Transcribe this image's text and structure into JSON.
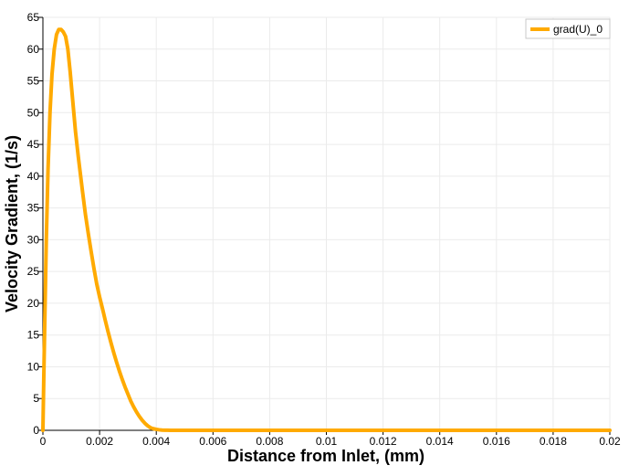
{
  "chart_data": {
    "type": "line",
    "title": "",
    "xlabel": "Distance from Inlet, (mm)",
    "ylabel": "Velocity Gradient, (1/s)",
    "xlim": [
      0,
      0.02
    ],
    "ylim": [
      0,
      65
    ],
    "x_ticks": [
      0,
      0.002,
      0.004,
      0.006,
      0.008,
      0.01,
      0.012,
      0.014,
      0.016,
      0.018,
      0.02
    ],
    "x_tick_labels": [
      "0",
      "0.002",
      "0.004",
      "0.006",
      "0.008",
      "0.01",
      "0.012",
      "0.014",
      "0.016",
      "0.018",
      "0.02"
    ],
    "y_ticks": [
      0,
      5,
      10,
      15,
      20,
      25,
      30,
      35,
      40,
      45,
      50,
      55,
      60,
      65
    ],
    "y_tick_labels": [
      "0",
      "5",
      "10",
      "15",
      "20",
      "25",
      "30",
      "35",
      "40",
      "45",
      "50",
      "55",
      "60",
      "65"
    ],
    "grid": true,
    "legend_position": "top-right",
    "series": [
      {
        "name": "grad(U)_0",
        "color": "#ffaa00",
        "x": [
          0,
          3e-05,
          7e-05,
          0.00012,
          0.00018,
          0.00025,
          0.00032,
          0.0004,
          0.00048,
          0.00056,
          0.00064,
          0.00072,
          0.0008,
          0.00088,
          0.00096,
          0.00105,
          0.00115,
          0.00125,
          0.0014,
          0.0015,
          0.0016,
          0.0017,
          0.0018,
          0.0019,
          0.002,
          0.0021,
          0.0022,
          0.0023,
          0.0024,
          0.0025,
          0.0026,
          0.0027,
          0.0028,
          0.0029,
          0.003,
          0.0031,
          0.0032,
          0.0033,
          0.0034,
          0.0035,
          0.0036,
          0.0037,
          0.0038,
          0.0039,
          0.004,
          0.0041,
          0.0042,
          0.0043,
          0.0044,
          0.0045,
          0.0046,
          0.0047,
          0.0048,
          0.005,
          0.006,
          0.008,
          0.01,
          0.012,
          0.014,
          0.016,
          0.018,
          0.02
        ],
        "values": [
          0,
          8,
          18,
          30,
          41,
          50,
          56,
          60,
          62.3,
          63.1,
          63.1,
          62.7,
          62,
          60,
          56.5,
          52,
          47,
          43,
          37.5,
          34,
          31,
          28.2,
          25.5,
          23,
          21,
          19.2,
          17.3,
          15.5,
          13.8,
          12.2,
          10.7,
          9.3,
          8,
          6.8,
          5.7,
          4.6,
          3.7,
          2.9,
          2.2,
          1.6,
          1.1,
          0.7,
          0.4,
          0.25,
          0.15,
          0.08,
          0.04,
          0.02,
          0.01,
          0.005,
          0,
          0,
          0,
          0,
          0,
          0,
          0,
          0,
          0,
          0,
          0,
          0
        ]
      }
    ]
  }
}
